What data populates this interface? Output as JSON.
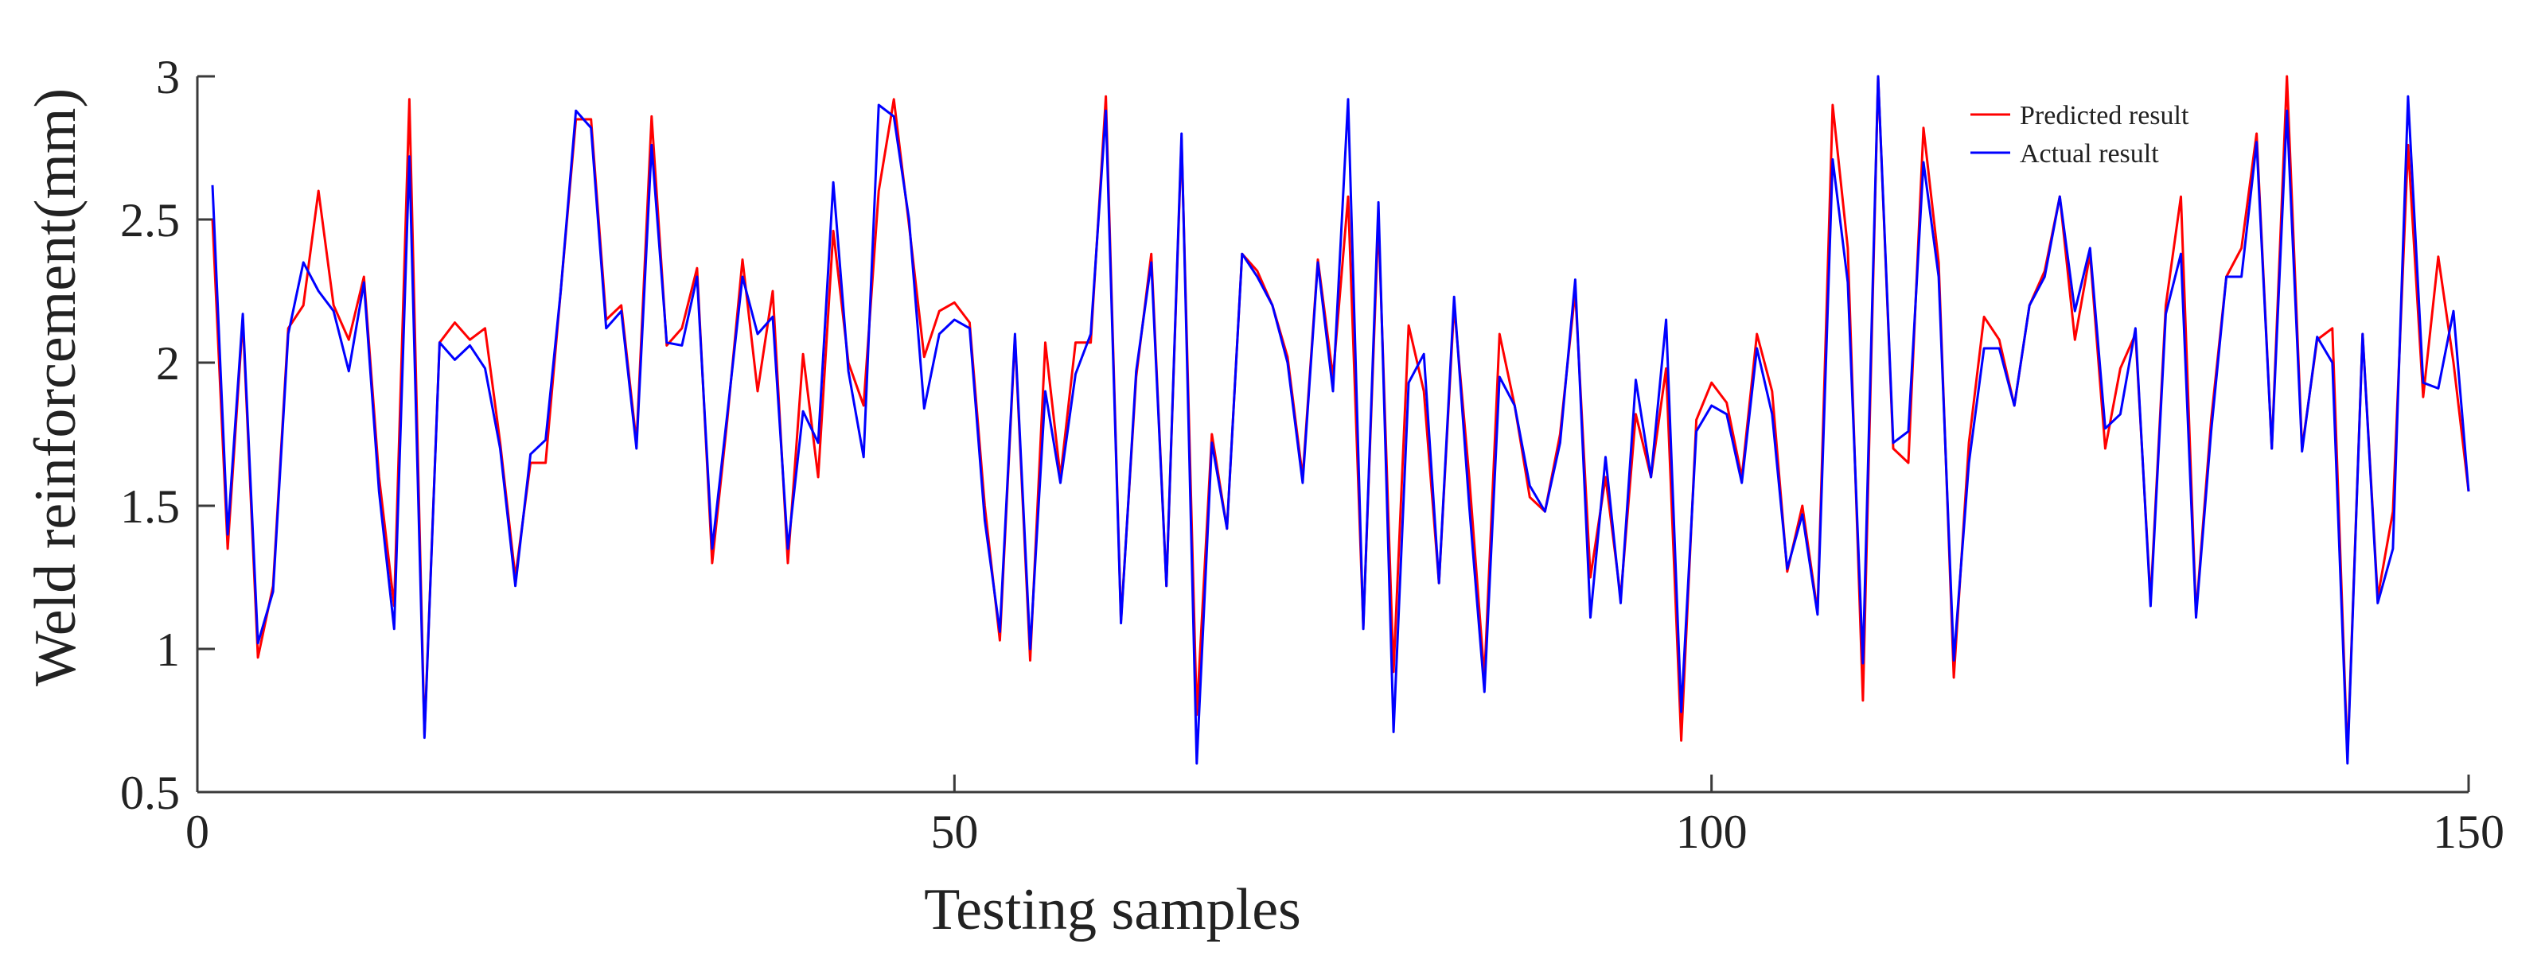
{
  "chart_data": {
    "type": "line",
    "title": "",
    "xlabel": "Testing samples",
    "ylabel": "Weld reinforcement(mm)",
    "xlim": [
      0,
      150
    ],
    "ylim": [
      0.5,
      3
    ],
    "xticks": [
      0,
      50,
      100,
      150
    ],
    "xtick_labels": [
      "0",
      "50",
      "100",
      "150"
    ],
    "yticks": [
      0.5,
      1,
      1.5,
      2,
      2.5,
      3
    ],
    "ytick_labels": [
      "0.5",
      "1",
      "1.5",
      "2",
      "2.5",
      "3"
    ],
    "grid": false,
    "legend_position": "top-right",
    "series": [
      {
        "name": "Predicted result",
        "color": "#ff0000",
        "x": [
          1,
          2,
          3,
          4,
          5,
          6,
          7,
          8,
          9,
          10,
          11,
          12,
          13,
          14,
          15,
          16,
          17,
          18,
          19,
          20,
          21,
          22,
          23,
          24,
          25,
          26,
          27,
          28,
          29,
          30,
          31,
          32,
          33,
          34,
          35,
          36,
          37,
          38,
          39,
          40,
          41,
          42,
          43,
          44,
          45,
          46,
          47,
          48,
          49,
          50,
          51,
          52,
          53,
          54,
          55,
          56,
          57,
          58,
          59,
          60,
          61,
          62,
          63,
          64,
          65,
          66,
          67,
          68,
          69,
          70,
          71,
          72,
          73,
          74,
          75,
          76,
          77,
          78,
          79,
          80,
          81,
          82,
          83,
          84,
          85,
          86,
          87,
          88,
          89,
          90,
          91,
          92,
          93,
          94,
          95,
          96,
          97,
          98,
          99,
          100,
          101,
          102,
          103,
          104,
          105,
          106,
          107,
          108,
          109,
          110,
          111,
          112,
          113,
          114,
          115,
          116,
          117,
          118,
          119,
          120,
          121,
          122,
          123,
          124,
          125,
          126,
          127,
          128,
          129,
          130,
          131,
          132,
          133,
          134,
          135,
          136,
          137,
          138,
          139,
          140,
          141,
          142,
          143,
          144,
          145,
          146,
          147,
          148,
          149,
          150
        ],
        "values": [
          2.5,
          1.35,
          2.15,
          0.97,
          1.22,
          2.12,
          2.2,
          2.6,
          2.2,
          2.08,
          2.3,
          1.6,
          1.15,
          2.92,
          0.7,
          2.07,
          2.14,
          2.08,
          2.12,
          1.72,
          1.25,
          1.65,
          1.65,
          2.25,
          2.85,
          2.85,
          2.15,
          2.2,
          1.72,
          2.86,
          2.06,
          2.12,
          2.33,
          1.3,
          1.8,
          2.36,
          1.9,
          2.25,
          1.3,
          2.03,
          1.6,
          2.46,
          2.0,
          1.85,
          2.6,
          2.92,
          2.48,
          2.02,
          2.18,
          2.21,
          2.14,
          1.5,
          1.03,
          2.09,
          0.96,
          2.07,
          1.6,
          2.07,
          2.07,
          2.93,
          1.1,
          1.95,
          2.38,
          1.22,
          2.78,
          0.77,
          1.75,
          1.42,
          2.38,
          2.32,
          2.2,
          2.02,
          1.6,
          2.36,
          1.95,
          2.58,
          1.08,
          2.5,
          0.92,
          2.13,
          1.9,
          1.23,
          2.2,
          1.6,
          0.9,
          2.1,
          1.85,
          1.53,
          1.48,
          1.75,
          2.25,
          1.25,
          1.6,
          1.18,
          1.82,
          1.6,
          1.98,
          0.68,
          1.8,
          1.93,
          1.86,
          1.6,
          2.1,
          1.9,
          1.27,
          1.5,
          1.13,
          2.9,
          2.4,
          0.82,
          3.0,
          1.7,
          1.65,
          2.82,
          2.35,
          0.9,
          1.72,
          2.16,
          2.08,
          1.85,
          2.2,
          2.32,
          2.58,
          2.08,
          2.38,
          1.7,
          1.98,
          2.1,
          1.17,
          2.2,
          2.58,
          1.12,
          1.8,
          2.3,
          2.4,
          2.8,
          1.7,
          3.0,
          1.7,
          2.08,
          2.12,
          0.62,
          2.1,
          1.18,
          1.48,
          2.76,
          1.88,
          2.37,
          2.0,
          1.55
        ]
      },
      {
        "name": "Actual result",
        "color": "#0000ff",
        "x": [
          1,
          2,
          3,
          4,
          5,
          6,
          7,
          8,
          9,
          10,
          11,
          12,
          13,
          14,
          15,
          16,
          17,
          18,
          19,
          20,
          21,
          22,
          23,
          24,
          25,
          26,
          27,
          28,
          29,
          30,
          31,
          32,
          33,
          34,
          35,
          36,
          37,
          38,
          39,
          40,
          41,
          42,
          43,
          44,
          45,
          46,
          47,
          48,
          49,
          50,
          51,
          52,
          53,
          54,
          55,
          56,
          57,
          58,
          59,
          60,
          61,
          62,
          63,
          64,
          65,
          66,
          67,
          68,
          69,
          70,
          71,
          72,
          73,
          74,
          75,
          76,
          77,
          78,
          79,
          80,
          81,
          82,
          83,
          84,
          85,
          86,
          87,
          88,
          89,
          90,
          91,
          92,
          93,
          94,
          95,
          96,
          97,
          98,
          99,
          100,
          101,
          102,
          103,
          104,
          105,
          106,
          107,
          108,
          109,
          110,
          111,
          112,
          113,
          114,
          115,
          116,
          117,
          118,
          119,
          120,
          121,
          122,
          123,
          124,
          125,
          126,
          127,
          128,
          129,
          130,
          131,
          132,
          133,
          134,
          135,
          136,
          137,
          138,
          139,
          140,
          141,
          142,
          143,
          144,
          145,
          146,
          147,
          148,
          149,
          150
        ],
        "values": [
          2.62,
          1.4,
          2.17,
          1.02,
          1.2,
          2.1,
          2.35,
          2.25,
          2.18,
          1.97,
          2.28,
          1.55,
          1.07,
          2.72,
          0.69,
          2.07,
          2.01,
          2.06,
          1.98,
          1.7,
          1.22,
          1.68,
          1.73,
          2.25,
          2.88,
          2.82,
          2.12,
          2.18,
          1.7,
          2.76,
          2.07,
          2.06,
          2.3,
          1.35,
          1.82,
          2.3,
          2.1,
          2.16,
          1.35,
          1.83,
          1.72,
          2.63,
          1.97,
          1.67,
          2.9,
          2.86,
          2.5,
          1.84,
          2.1,
          2.15,
          2.12,
          1.45,
          1.06,
          2.1,
          1.0,
          1.9,
          1.58,
          1.96,
          2.1,
          2.88,
          1.09,
          1.97,
          2.35,
          1.22,
          2.8,
          0.6,
          1.72,
          1.42,
          2.38,
          2.3,
          2.2,
          2.0,
          1.58,
          2.35,
          1.9,
          2.92,
          1.07,
          2.56,
          0.71,
          1.93,
          2.03,
          1.23,
          2.23,
          1.5,
          0.85,
          1.95,
          1.85,
          1.57,
          1.48,
          1.72,
          2.29,
          1.11,
          1.67,
          1.16,
          1.94,
          1.6,
          2.15,
          0.78,
          1.76,
          1.85,
          1.82,
          1.58,
          2.05,
          1.82,
          1.28,
          1.47,
          1.12,
          2.71,
          2.28,
          0.95,
          3.0,
          1.72,
          1.76,
          2.7,
          2.3,
          0.96,
          1.65,
          2.05,
          2.05,
          1.85,
          2.2,
          2.3,
          2.58,
          2.18,
          2.4,
          1.77,
          1.82,
          2.12,
          1.15,
          2.17,
          2.38,
          1.11,
          1.76,
          2.3,
          2.3,
          2.77,
          1.7,
          2.88,
          1.69,
          2.09,
          2.0,
          0.6,
          2.1,
          1.16,
          1.35,
          2.93,
          1.93,
          1.91,
          2.18,
          1.55
        ]
      }
    ]
  }
}
